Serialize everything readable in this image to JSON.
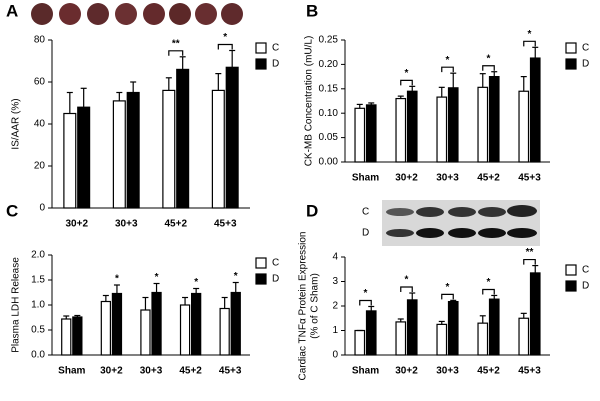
{
  "chart_data": [
    {
      "type": "bar",
      "panel": "A",
      "ylabel": [
        "IS/AAR (%)"
      ],
      "categories": [
        "30+2",
        "30+3",
        "45+2",
        "45+3"
      ],
      "series": [
        {
          "name": "C",
          "color": "#ffffff",
          "values": [
            45,
            51,
            56,
            56
          ],
          "errors": [
            10,
            4,
            6,
            8
          ]
        },
        {
          "name": "D",
          "color": "#000000",
          "values": [
            48,
            55,
            66,
            67
          ],
          "errors": [
            9,
            5,
            6,
            8
          ]
        }
      ],
      "ylim": [
        0,
        80
      ],
      "yticks": [
        0,
        20,
        40,
        60,
        80
      ],
      "brackets": true,
      "annotations": [
        {
          "text": "**",
          "category": "45+2"
        },
        {
          "text": "*",
          "category": "45+3"
        }
      ]
    },
    {
      "type": "bar",
      "panel": "B",
      "ylabel": [
        "CK-MB Concentration (mU/L)"
      ],
      "categories": [
        "Sham",
        "30+2",
        "30+3",
        "45+2",
        "45+3"
      ],
      "series": [
        {
          "name": "C",
          "color": "#ffffff",
          "values": [
            0.11,
            0.13,
            0.133,
            0.153,
            0.145
          ],
          "errors": [
            0.008,
            0.005,
            0.02,
            0.028,
            0.03
          ]
        },
        {
          "name": "D",
          "color": "#000000",
          "values": [
            0.117,
            0.145,
            0.152,
            0.175,
            0.213
          ],
          "errors": [
            0.004,
            0.01,
            0.03,
            0.01,
            0.022
          ]
        }
      ],
      "ylim": [
        0,
        0.25
      ],
      "yticks": [
        {
          "value": 0,
          "label": "0.00"
        },
        {
          "value": 0.05,
          "label": "0.05"
        },
        {
          "value": 0.1,
          "label": "0.10"
        },
        {
          "value": 0.15,
          "label": "0.15"
        },
        {
          "value": 0.2,
          "label": "0.20"
        },
        {
          "value": 0.25,
          "label": "0.25"
        }
      ],
      "brackets": true,
      "annotations": [
        {
          "text": "*",
          "category": "30+2"
        },
        {
          "text": "*",
          "category": "30+3"
        },
        {
          "text": "*",
          "category": "45+2"
        },
        {
          "text": "*",
          "category": "45+3"
        }
      ]
    },
    {
      "type": "bar",
      "panel": "C",
      "ylabel": [
        "Plasma LDH Release"
      ],
      "categories": [
        "Sham",
        "30+2",
        "30+3",
        "45+2",
        "45+3"
      ],
      "series": [
        {
          "name": "C",
          "color": "#ffffff",
          "values": [
            0.72,
            1.07,
            0.9,
            1.0,
            0.93
          ],
          "errors": [
            0.06,
            0.12,
            0.25,
            0.15,
            0.22
          ]
        },
        {
          "name": "D",
          "color": "#000000",
          "values": [
            0.76,
            1.23,
            1.25,
            1.23,
            1.25
          ],
          "errors": [
            0.03,
            0.17,
            0.18,
            0.1,
            0.2
          ]
        }
      ],
      "ylim": [
        0,
        2
      ],
      "yticks": [
        {
          "value": 0,
          "label": "0.0"
        },
        {
          "value": 0.5,
          "label": "0.5"
        },
        {
          "value": 1,
          "label": "1.0"
        },
        {
          "value": 1.5,
          "label": "1.5"
        },
        {
          "value": 2,
          "label": "2.0"
        }
      ],
      "brackets": false,
      "annotations": [
        {
          "text": "*",
          "category": "30+2"
        },
        {
          "text": "*",
          "category": "30+3"
        },
        {
          "text": "*",
          "category": "45+2"
        },
        {
          "text": "*",
          "category": "45+3"
        }
      ]
    },
    {
      "type": "bar",
      "panel": "D",
      "ylabel": [
        "Cardiac TNFα Protein Expression",
        "(% of C Sham)"
      ],
      "blot_labels": [
        "C",
        "D"
      ],
      "categories": [
        "Sham",
        "30+2",
        "30+3",
        "45+2",
        "45+3"
      ],
      "series": [
        {
          "name": "C",
          "color": "#ffffff",
          "values": [
            1.0,
            1.35,
            1.25,
            1.3,
            1.5
          ],
          "errors": [
            0,
            0.12,
            0.12,
            0.3,
            0.2
          ]
        },
        {
          "name": "D",
          "color": "#000000",
          "values": [
            1.8,
            2.25,
            2.18,
            2.28,
            3.35
          ],
          "errors": [
            0.18,
            0.28,
            0.05,
            0.15,
            0.3
          ]
        }
      ],
      "ylim": [
        0,
        4
      ],
      "yticks": [
        0,
        1,
        2,
        3,
        4
      ],
      "brackets": true,
      "annotations": [
        {
          "text": "*",
          "category": "Sham"
        },
        {
          "text": "*",
          "category": "30+2"
        },
        {
          "text": "*",
          "category": "30+3"
        },
        {
          "text": "*",
          "category": "45+2"
        },
        {
          "text": "**",
          "category": "45+3"
        }
      ]
    }
  ]
}
